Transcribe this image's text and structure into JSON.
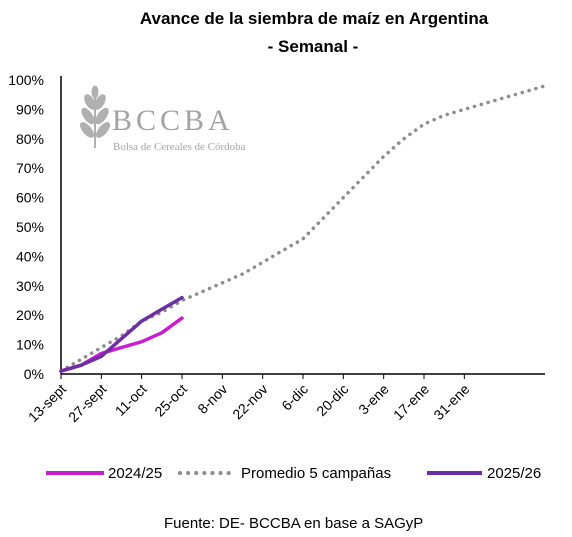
{
  "chart_data": {
    "type": "line",
    "title": "Avance de la siembra de maíz en Argentina",
    "subtitle": "- Semanal -",
    "source": "Fuente: DE- BCCBA  en base a SAGyP",
    "watermark": {
      "name": "BCCBA",
      "tagline": "Bolsa de Cereales de Córdoba"
    },
    "x_ticks": [
      "13-sept",
      "27-sept",
      "11-oct",
      "25-oct",
      "8-nov",
      "22-nov",
      "6-dic",
      "20-dic",
      "3-ene",
      "17-ene",
      "31-ene"
    ],
    "x_units": "weeks since 13-sept",
    "y_ticks": [
      "0%",
      "10%",
      "20%",
      "30%",
      "40%",
      "50%",
      "60%",
      "70%",
      "80%",
      "90%",
      "100%"
    ],
    "ylim": [
      0,
      100
    ],
    "grid": false,
    "legend_position": "bottom",
    "series": [
      {
        "name": "2024/25",
        "color": "#c81ecf",
        "style": "solid",
        "points": [
          [
            0,
            1
          ],
          [
            1,
            3
          ],
          [
            2,
            7
          ],
          [
            3,
            9
          ],
          [
            4,
            11
          ],
          [
            5,
            14
          ],
          [
            6,
            19
          ]
        ]
      },
      {
        "name": "Promedio 5 campañas",
        "color": "#8c8c8c",
        "style": "dotted",
        "points": [
          [
            0,
            1
          ],
          [
            1,
            5
          ],
          [
            2,
            9
          ],
          [
            3,
            13
          ],
          [
            4,
            18
          ],
          [
            5,
            21
          ],
          [
            6,
            25
          ],
          [
            7,
            28
          ],
          [
            8,
            31
          ],
          [
            9,
            34
          ],
          [
            10,
            38
          ],
          [
            11,
            42
          ],
          [
            12,
            46
          ],
          [
            13,
            53
          ],
          [
            14,
            60
          ],
          [
            15,
            67
          ],
          [
            16,
            74
          ],
          [
            17,
            80
          ],
          [
            18,
            85
          ],
          [
            19,
            88
          ],
          [
            20,
            90
          ],
          [
            21,
            92
          ],
          [
            22,
            94
          ],
          [
            23,
            96
          ],
          [
            24,
            98
          ]
        ]
      },
      {
        "name": "2025/26",
        "color": "#6d2fa1",
        "style": "solid",
        "points": [
          [
            0,
            1
          ],
          [
            1,
            3
          ],
          [
            2,
            6
          ],
          [
            3,
            12
          ],
          [
            4,
            18
          ],
          [
            5,
            22
          ],
          [
            6,
            26
          ]
        ]
      }
    ]
  }
}
